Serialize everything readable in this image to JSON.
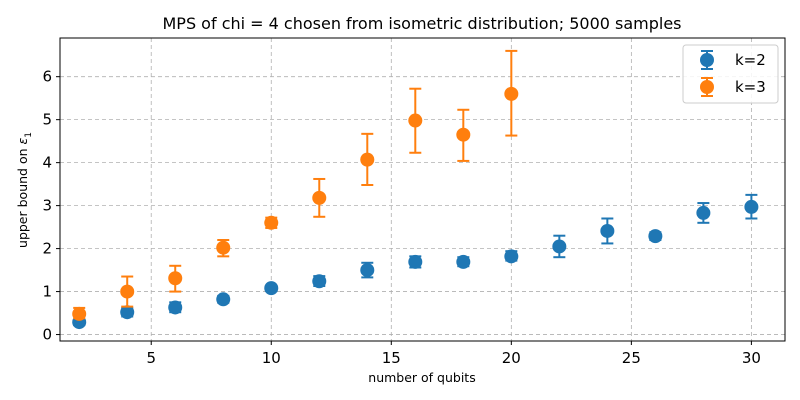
{
  "chart_data": {
    "type": "scatter",
    "title": "MPS of chi = 4 chosen from isometric distribution; 5000 samples",
    "xlabel": "number of qubits",
    "ylabel_text": "upper bound on ",
    "ylabel_symbol": "ε",
    "ylabel_subscript": "1",
    "xlim": [
      1.2,
      31.4
    ],
    "ylim": [
      -0.15,
      6.9
    ],
    "xticks": [
      5,
      10,
      15,
      20,
      25,
      30
    ],
    "yticks": [
      0,
      1,
      2,
      3,
      4,
      5,
      6
    ],
    "grid": true,
    "legend_position": "top-right",
    "series": [
      {
        "name": "k=2",
        "color": "#1f77b4",
        "x": [
          2,
          4,
          6,
          8,
          10,
          12,
          14,
          16,
          18,
          20,
          22,
          24,
          26,
          28,
          30
        ],
        "y": [
          0.29,
          0.52,
          0.63,
          0.82,
          1.08,
          1.24,
          1.5,
          1.69,
          1.69,
          1.82,
          2.05,
          2.41,
          2.29,
          2.83,
          2.97
        ],
        "err_low": [
          0.22,
          0.42,
          0.52,
          0.74,
          1.01,
          1.13,
          1.33,
          1.56,
          1.59,
          1.72,
          1.8,
          2.12,
          2.2,
          2.6,
          2.7
        ],
        "err_high": [
          0.35,
          0.62,
          0.75,
          0.9,
          1.14,
          1.36,
          1.67,
          1.82,
          1.8,
          1.94,
          2.3,
          2.7,
          2.38,
          3.06,
          3.25
        ]
      },
      {
        "name": "k=3",
        "color": "#ff7f0e",
        "x": [
          2,
          4,
          6,
          8,
          10,
          12,
          14,
          16,
          18,
          20
        ],
        "y": [
          0.48,
          1.0,
          1.31,
          2.02,
          2.6,
          3.18,
          4.07,
          4.98,
          4.65,
          5.6
        ],
        "err_low": [
          0.38,
          0.65,
          1.0,
          1.82,
          2.48,
          2.74,
          3.48,
          4.23,
          4.04,
          4.63
        ],
        "err_high": [
          0.62,
          1.35,
          1.6,
          2.2,
          2.72,
          3.62,
          4.67,
          5.72,
          5.23,
          6.6
        ]
      }
    ]
  }
}
